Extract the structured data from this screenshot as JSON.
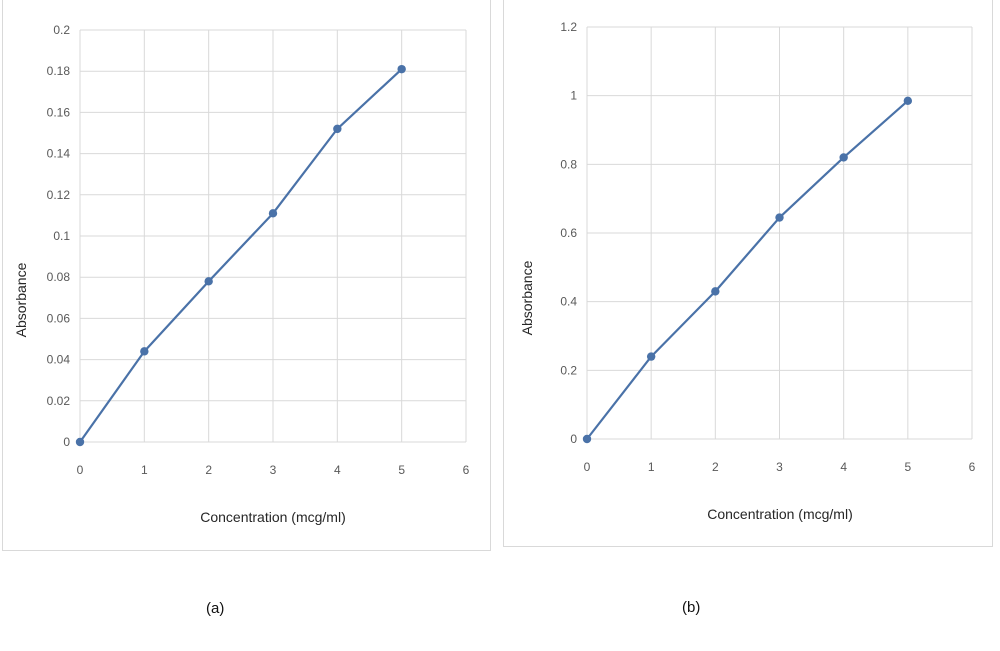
{
  "chart_data": [
    {
      "type": "line",
      "caption": "(a)",
      "xlabel": "Concentration (mcg/ml)",
      "ylabel": "Absorbance",
      "xlim": [
        0,
        6
      ],
      "ylim": [
        0,
        0.2
      ],
      "x_ticks": [
        "0",
        "1",
        "2",
        "3",
        "4",
        "5",
        "6"
      ],
      "y_ticks": [
        "0",
        "0.02",
        "0.04",
        "0.06",
        "0.08",
        "0.1",
        "0.12",
        "0.14",
        "0.16",
        "0.18",
        "0.2"
      ],
      "grid": true,
      "series": [
        {
          "x": [
            0,
            1,
            2,
            3,
            4,
            5
          ],
          "values": [
            0,
            0.044,
            0.078,
            0.111,
            0.152,
            0.181
          ],
          "color": "#4a72a8",
          "marker": "circle"
        }
      ]
    },
    {
      "type": "line",
      "caption": "(b)",
      "xlabel": "Concentration (mcg/ml)",
      "ylabel": "Absorbance",
      "xlim": [
        0,
        6
      ],
      "ylim": [
        0,
        1.2
      ],
      "x_ticks": [
        "0",
        "1",
        "2",
        "3",
        "4",
        "5",
        "6"
      ],
      "y_ticks": [
        "0",
        "0.2",
        "0.4",
        "0.6",
        "0.8",
        "1",
        "1.2"
      ],
      "grid": true,
      "series": [
        {
          "x": [
            0,
            1,
            2,
            3,
            4,
            5
          ],
          "values": [
            0,
            0.24,
            0.43,
            0.645,
            0.82,
            0.985
          ],
          "color": "#4a72a8",
          "marker": "circle"
        }
      ]
    }
  ]
}
